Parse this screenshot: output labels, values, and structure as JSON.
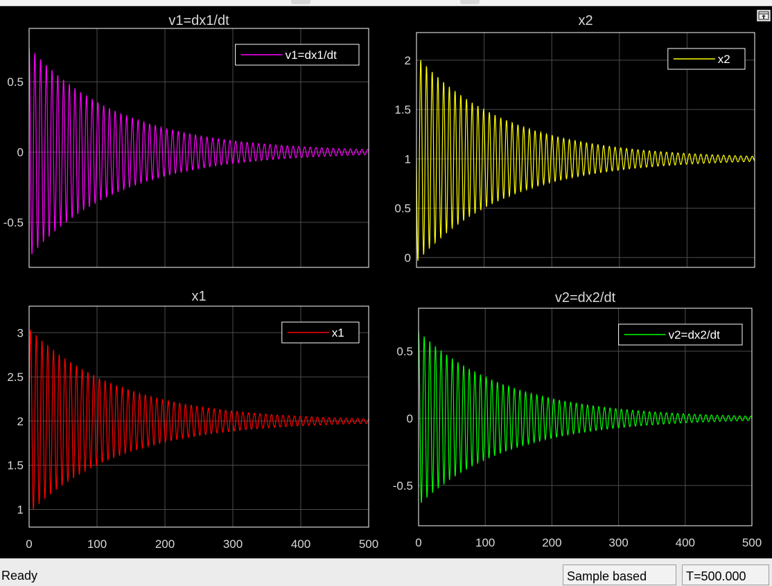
{
  "status_bar": {
    "status": "Ready",
    "mode": "Sample based",
    "time": "T=500.000"
  },
  "window_controls": {
    "undock_icon": "undock-icon"
  },
  "theme": {
    "background": "#000000",
    "axes_border": "#ffffff",
    "grid": "#4d4d4d",
    "tick_text": "#d9d9d9"
  },
  "chart_data": [
    {
      "type": "line",
      "title": "v1=dx1/dt",
      "xlim": [
        0,
        500
      ],
      "ylim": [
        -0.82,
        0.88
      ],
      "yticks": [
        -0.5,
        0,
        0.5
      ],
      "ytick_labels": [
        "-0.5",
        "0",
        "0.5"
      ],
      "xticks": [
        0,
        100,
        200,
        300,
        400,
        500
      ],
      "xtick_labels": [],
      "grid": true,
      "legend_position": "top-right",
      "series": [
        {
          "name": "v1=dx1/dt",
          "color": "#ff00ff",
          "x": [
            0,
            500
          ],
          "y": [
            0,
            0
          ],
          "waveform": {
            "offset": 0.0,
            "amplitude": 0.75,
            "period": 8.45,
            "decay_time": 135,
            "phase": "cos"
          }
        }
      ]
    },
    {
      "type": "line",
      "title": "x2",
      "xlim": [
        0,
        500
      ],
      "ylim": [
        -0.1,
        2.28
      ],
      "yticks": [
        0,
        0.5,
        1,
        1.5,
        2
      ],
      "ytick_labels": [
        "0",
        "0.5",
        "1",
        "1.5",
        "2"
      ],
      "xticks": [
        0,
        100,
        200,
        300,
        400,
        500
      ],
      "xtick_labels": [],
      "grid": true,
      "legend_position": "top-right",
      "series": [
        {
          "name": "x2",
          "color": "#ffff00",
          "x": [
            0,
            500
          ],
          "y": [
            1,
            1
          ],
          "waveform": {
            "offset": 1.0,
            "amplitude": 1.05,
            "period": 8.45,
            "decay_time": 135,
            "phase": "neg-sin"
          }
        }
      ]
    },
    {
      "type": "line",
      "title": "x1",
      "xlim": [
        0,
        500
      ],
      "ylim": [
        0.8,
        3.3
      ],
      "yticks": [
        1,
        1.5,
        2,
        2.5,
        3
      ],
      "ytick_labels": [
        "1",
        "1.5",
        "2",
        "2.5",
        "3"
      ],
      "xticks": [
        0,
        100,
        200,
        300,
        400,
        500
      ],
      "xtick_labels": [
        "0",
        "100",
        "200",
        "300",
        "400",
        "500"
      ],
      "grid": true,
      "legend_position": "top-right",
      "series": [
        {
          "name": "x1",
          "color": "#ff0000",
          "x": [
            0,
            500
          ],
          "y": [
            2,
            2
          ],
          "waveform": {
            "offset": 2.0,
            "amplitude": 1.05,
            "period": 8.45,
            "decay_time": 135,
            "phase": "sin"
          }
        }
      ]
    },
    {
      "type": "line",
      "title": "v2=dx2/dt",
      "xlim": [
        0,
        500
      ],
      "ylim": [
        -0.8,
        0.82
      ],
      "yticks": [
        -0.5,
        0,
        0.5
      ],
      "ytick_labels": [
        "-0.5",
        "0",
        "0.5"
      ],
      "xticks": [
        0,
        100,
        200,
        300,
        400,
        500
      ],
      "xtick_labels": [
        "0",
        "100",
        "200",
        "300",
        "400",
        "500"
      ],
      "grid": true,
      "legend_position": "top-right",
      "series": [
        {
          "name": "v2=dx2/dt",
          "color": "#00ff00",
          "x": [
            0,
            500
          ],
          "y": [
            0,
            0
          ],
          "waveform": {
            "offset": 0.0,
            "amplitude": 0.65,
            "period": 8.45,
            "decay_time": 135,
            "phase": "cos"
          }
        }
      ]
    }
  ]
}
